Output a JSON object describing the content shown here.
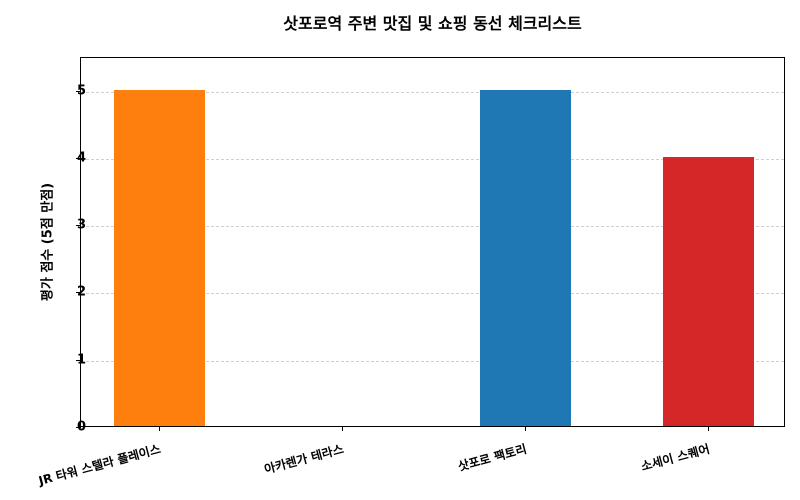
{
  "chart_data": {
    "type": "bar",
    "title": "삿포로역 주변 맛집 및 쇼핑 동선 체크리스트",
    "xlabel": "",
    "ylabel": "평가 점수 (5점 만점)",
    "categories": [
      "JR 타워 스텔라 플레이스",
      "아카렌가 테라스",
      "삿포로 팩토리",
      "소세이 스퀘어"
    ],
    "values": [
      5,
      0,
      5,
      4
    ],
    "colors": [
      "#ff7f0e",
      "#1f77b4",
      "#1f77b4",
      "#d62728"
    ],
    "ylim": [
      0,
      5.5
    ],
    "yticks": [
      0,
      1,
      2,
      3,
      4,
      5
    ],
    "grid": {
      "axis": "y",
      "style": "dashed",
      "color": "#d0d0d0"
    },
    "legend": null,
    "xtick_rotation": -15
  }
}
